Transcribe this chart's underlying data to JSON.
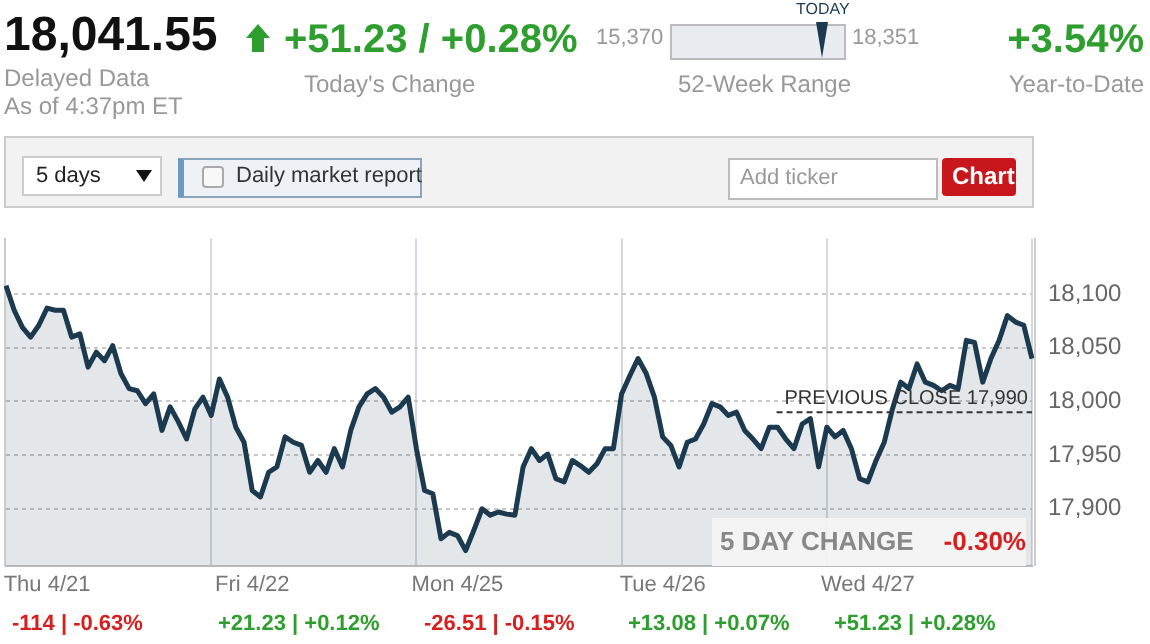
{
  "chart_data": {
    "type": "area",
    "categories": [
      null,
      null,
      null,
      null,
      null,
      "Thu 4/21",
      null,
      null,
      null,
      null,
      null,
      null,
      null,
      null,
      null,
      null,
      null,
      null,
      null,
      null,
      null,
      null,
      null,
      null,
      null,
      null,
      null,
      null,
      null,
      null,
      "Fri 4/22",
      null,
      null,
      null,
      null,
      null,
      null,
      null,
      null,
      null,
      null,
      null,
      null,
      null,
      null,
      null,
      null,
      null,
      null,
      null,
      null,
      null,
      null,
      null,
      null,
      "Mon 4/25",
      null,
      null,
      null,
      null,
      null,
      null,
      null,
      null,
      null,
      null,
      null,
      null,
      null,
      null,
      null,
      null,
      null,
      null,
      null,
      null,
      null,
      null,
      null,
      null,
      "Tue 4/26",
      null,
      null,
      null,
      null,
      null,
      null,
      null,
      null,
      null,
      null,
      null,
      null,
      null,
      null,
      null,
      null,
      null,
      null,
      null,
      null,
      null,
      null,
      null,
      null,
      "Wed 4/27",
      null,
      null,
      null,
      null,
      null,
      null,
      null,
      null,
      null,
      null,
      null,
      null,
      null,
      null,
      null,
      null,
      null,
      null,
      null,
      null
    ],
    "series": [
      {
        "color": "#1b3a4f",
        "values": [
          18108,
          18085,
          18069,
          18060,
          18071,
          18087,
          18085,
          18085,
          18060,
          18063,
          18032,
          18046,
          18038,
          18052,
          18026,
          18012,
          18010,
          17998,
          18007,
          17973,
          17995,
          17981,
          17965,
          17993,
          18004,
          17987,
          18021,
          18004,
          17976,
          17962,
          17917,
          17911,
          17934,
          17939,
          17967,
          17962,
          17959,
          17934,
          17945,
          17934,
          17956,
          17939,
          17973,
          17995,
          18007,
          18012,
          18004,
          17990,
          17995,
          18004,
          17956,
          17917,
          17914,
          17872,
          17878,
          17875,
          17861,
          17880,
          17900,
          17894,
          17897,
          17895,
          17894,
          17939,
          17956,
          17945,
          17951,
          17928,
          17925,
          17945,
          17940,
          17934,
          17942,
          17956,
          17956,
          18007,
          18024,
          18040,
          18026,
          18004,
          17967,
          17959,
          17939,
          17962,
          17965,
          17979,
          17998,
          17995,
          17987,
          17990,
          17973,
          17965,
          17956,
          17976,
          17976,
          17965,
          17956,
          17979,
          17984,
          17939,
          17976,
          17967,
          17973,
          17956,
          17928,
          17925,
          17945,
          17962,
          17993,
          18018,
          18012,
          18035,
          18018,
          18015,
          18010,
          18015,
          18012,
          18057,
          18055,
          18018,
          18040,
          18057,
          18080,
          18074,
          18071,
          18040
        ]
      }
    ],
    "ylim": [
      17847,
      18152
    ],
    "yticks": [
      {
        "value": 17900,
        "label": "17,900"
      },
      {
        "value": 17950,
        "label": "17,950"
      },
      {
        "value": 18000,
        "label": "18,000"
      },
      {
        "value": 18050,
        "label": "18,050"
      },
      {
        "value": 18100,
        "label": "18,100"
      }
    ],
    "grid": true,
    "legend": false,
    "ref_lines": [
      {
        "axis": "y",
        "value": 17990,
        "label": "PREVIOUS CLOSE 17,990",
        "line_style": "dashed",
        "color": "#333333"
      }
    ],
    "annotations": [
      "18,041.55",
      "Delayed Data",
      "As of 4:37pm ET",
      "+51.23 / +0.28%",
      "Today's Change",
      "15,370",
      "18,351",
      "TODAY",
      "52-Week Range",
      "+3.54%",
      "Year-to-Date",
      "5 days",
      "Daily market report",
      "Add ticker",
      "Chart",
      "5 DAY CHANGE",
      "-0.30%",
      "-114 | -0.63%",
      "+21.23 | +0.12%",
      "-26.51 | -0.15%",
      "+13.08 | +0.07%",
      "+51.23 | +0.28%"
    ]
  }
}
